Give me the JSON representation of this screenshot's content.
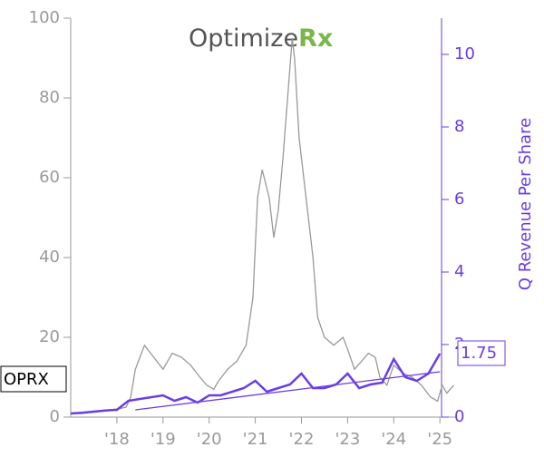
{
  "chart_data": {
    "type": "line",
    "logo_text": "Optimize",
    "logo_accent": "Rx",
    "ticker": "OPRX",
    "y2label": "Q Revenue Per Share",
    "xlim": [
      2017,
      2025.35
    ],
    "xticks": [
      {
        "value": 2018,
        "label": "'18"
      },
      {
        "value": 2019,
        "label": "'19"
      },
      {
        "value": 2020,
        "label": "'20"
      },
      {
        "value": 2021,
        "label": "'21"
      },
      {
        "value": 2022,
        "label": "'22"
      },
      {
        "value": 2023,
        "label": "'23"
      },
      {
        "value": 2024,
        "label": "'24"
      },
      {
        "value": 2025,
        "label": "'25"
      }
    ],
    "ylim": [
      0,
      100
    ],
    "yticks": [
      0,
      20,
      40,
      60,
      80,
      100
    ],
    "y2lim": [
      0,
      11
    ],
    "y2ticks": [
      0,
      2,
      4,
      6,
      8,
      10
    ],
    "series": [
      {
        "color": "#999999",
        "axis": "y",
        "x": [
          2017.05,
          2017.5,
          2018.0,
          2018.2,
          2018.3,
          2018.4,
          2018.6,
          2018.8,
          2019.0,
          2019.2,
          2019.4,
          2019.6,
          2019.8,
          2019.95,
          2020.1,
          2020.2,
          2020.4,
          2020.6,
          2020.8,
          2020.95,
          2021.05,
          2021.15,
          2021.3,
          2021.4,
          2021.5,
          2021.6,
          2021.7,
          2021.8,
          2021.85,
          2021.95,
          2022.05,
          2022.15,
          2022.25,
          2022.35,
          2022.5,
          2022.7,
          2022.9,
          2023.0,
          2023.15,
          2023.3,
          2023.45,
          2023.6,
          2023.7,
          2023.85,
          2024.0,
          2024.2,
          2024.4,
          2024.6,
          2024.8,
          2024.95,
          2025.05,
          2025.15,
          2025.3
        ],
        "values": [
          1,
          1.5,
          2,
          2.5,
          5,
          12,
          18,
          15,
          12,
          16,
          15,
          13,
          10,
          8,
          7,
          9,
          12,
          14,
          18,
          30,
          55,
          62,
          55,
          45,
          52,
          65,
          80,
          95,
          90,
          70,
          60,
          50,
          40,
          25,
          20,
          18,
          20,
          17,
          12,
          14,
          16,
          15,
          10,
          8,
          13,
          11,
          10,
          8,
          5,
          4,
          8,
          6,
          8
        ]
      },
      {
        "color": "#6a3de8",
        "axis": "y2",
        "x": [
          2017.0,
          2017.25,
          2017.5,
          2017.75,
          2018.0,
          2018.25,
          2018.5,
          2018.75,
          2019.0,
          2019.25,
          2019.5,
          2019.75,
          2020.0,
          2020.25,
          2020.5,
          2020.75,
          2021.0,
          2021.25,
          2021.5,
          2021.75,
          2022.0,
          2022.25,
          2022.5,
          2022.75,
          2023.0,
          2023.25,
          2023.5,
          2023.75,
          2024.0,
          2024.25,
          2024.5,
          2024.75,
          2025.0
        ],
        "values": [
          0.1,
          0.12,
          0.15,
          0.18,
          0.2,
          0.45,
          0.5,
          0.55,
          0.6,
          0.45,
          0.55,
          0.4,
          0.6,
          0.6,
          0.7,
          0.8,
          1.0,
          0.7,
          0.8,
          0.9,
          1.2,
          0.8,
          0.8,
          0.9,
          1.2,
          0.8,
          0.9,
          0.95,
          1.6,
          1.1,
          1.0,
          1.2,
          1.75
        ]
      },
      {
        "color": "#6a3de8",
        "axis": "y2",
        "x": [
          2018.4,
          2025.0
        ],
        "values": [
          0.2,
          1.25
        ]
      }
    ]
  }
}
